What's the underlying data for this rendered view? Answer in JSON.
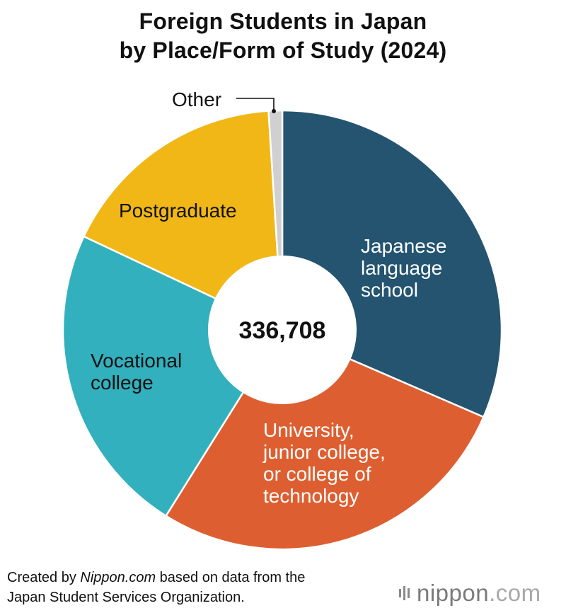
{
  "header": {
    "title_line1": "Foreign Students in Japan",
    "title_line2": "by Place/Form of Study (2024)"
  },
  "chart_data": {
    "type": "pie",
    "style": "donut",
    "center_label": "336,708",
    "total": 336708,
    "slices": [
      {
        "name": "Japanese language school",
        "label_lines": [
          "Japanese",
          "language",
          "school"
        ],
        "share": 0.315,
        "color": "#24546f"
      },
      {
        "name": "University, junior college, or college of technology",
        "label_lines": [
          "University,",
          "junior college,",
          "or college of",
          "technology"
        ],
        "share": 0.274,
        "color": "#dd5f31"
      },
      {
        "name": "Vocational college",
        "label_lines": [
          "Vocational",
          "college"
        ],
        "share": 0.231,
        "color": "#33b0bd"
      },
      {
        "name": "Postgraduate",
        "label_lines": [
          "Postgraduate"
        ],
        "share": 0.17,
        "color": "#f0b716"
      },
      {
        "name": "Other",
        "label_lines": [
          "Other"
        ],
        "share": 0.01,
        "color": "#d0d0d0"
      }
    ]
  },
  "footer": {
    "source_prefix": "Created by ",
    "source_site": "Nippon.com",
    "source_suffix": " based on data from the",
    "source_line2": "Japan Student Services Organization."
  },
  "brand": {
    "name": "nippon",
    "tld": ".com"
  }
}
